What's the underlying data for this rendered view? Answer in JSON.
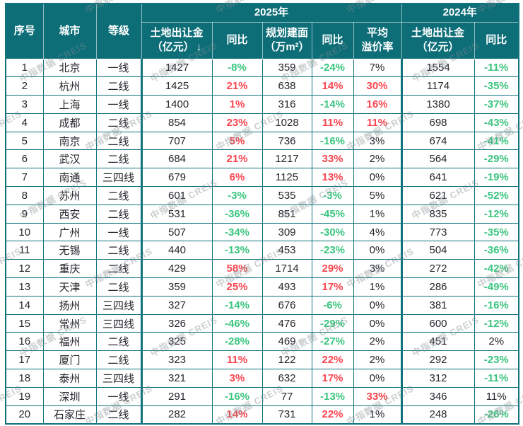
{
  "watermark": {
    "text": "中指数据 CREIS"
  },
  "colors": {
    "header_bg": "#0D6E78",
    "border": "#0F737D",
    "red": "#F9464F",
    "green": "#3BC57F",
    "text": "#26262C"
  },
  "header": {
    "fixed": [
      "序号",
      "城市",
      "等级"
    ],
    "groups": [
      "2025年",
      "2024年"
    ],
    "sub": [
      "土地出让金\n（亿元）",
      "同比",
      "规划建面\n（万m²）",
      "同比",
      "平均\n溢价率",
      "土地出让金\n（亿元）",
      "同比"
    ],
    "sort_icon": "↓"
  },
  "chart_data": {
    "type": "table",
    "title": "",
    "group_headers": [
      {
        "label": "2025年",
        "span": [
          "土地出让金（亿元）",
          "同比",
          "规划建面（万m²）",
          "同比",
          "平均溢价率"
        ]
      },
      {
        "label": "2024年",
        "span": [
          "土地出让金（亿元）",
          "同比"
        ]
      }
    ],
    "columns": [
      "序号",
      "城市",
      "等级",
      "土地出让金（亿元）",
      "同比",
      "规划建面（万m²）",
      "同比",
      "平均溢价率",
      "土地出让金（亿元）",
      "同比"
    ],
    "rows": [
      [
        {
          "v": "1"
        },
        {
          "v": "北京"
        },
        {
          "v": "一线"
        },
        {
          "v": "1427"
        },
        {
          "v": "-8%",
          "c": "green"
        },
        {
          "v": "359"
        },
        {
          "v": "-24%",
          "c": "green"
        },
        {
          "v": "7%"
        },
        {
          "v": "1554"
        },
        {
          "v": "-11%",
          "c": "green"
        }
      ],
      [
        {
          "v": "2"
        },
        {
          "v": "杭州"
        },
        {
          "v": "二线"
        },
        {
          "v": "1425"
        },
        {
          "v": "21%",
          "c": "red"
        },
        {
          "v": "638"
        },
        {
          "v": "14%",
          "c": "red"
        },
        {
          "v": "30%",
          "c": "red"
        },
        {
          "v": "1174"
        },
        {
          "v": "-35%",
          "c": "green"
        }
      ],
      [
        {
          "v": "3"
        },
        {
          "v": "上海"
        },
        {
          "v": "一线"
        },
        {
          "v": "1400"
        },
        {
          "v": "1%",
          "c": "red"
        },
        {
          "v": "316"
        },
        {
          "v": "-14%",
          "c": "green"
        },
        {
          "v": "16%",
          "c": "red"
        },
        {
          "v": "1380"
        },
        {
          "v": "-37%",
          "c": "green"
        }
      ],
      [
        {
          "v": "4"
        },
        {
          "v": "成都"
        },
        {
          "v": "二线"
        },
        {
          "v": "854"
        },
        {
          "v": "23%",
          "c": "red"
        },
        {
          "v": "1028"
        },
        {
          "v": "11%",
          "c": "red"
        },
        {
          "v": "11%",
          "c": "red"
        },
        {
          "v": "698"
        },
        {
          "v": "-43%",
          "c": "green"
        }
      ],
      [
        {
          "v": "5"
        },
        {
          "v": "南京"
        },
        {
          "v": "二线"
        },
        {
          "v": "707"
        },
        {
          "v": "5%",
          "c": "red"
        },
        {
          "v": "736"
        },
        {
          "v": "-16%",
          "c": "green"
        },
        {
          "v": "3%"
        },
        {
          "v": "674"
        },
        {
          "v": "-41%",
          "c": "green"
        }
      ],
      [
        {
          "v": "6"
        },
        {
          "v": "武汉"
        },
        {
          "v": "二线"
        },
        {
          "v": "684"
        },
        {
          "v": "21%",
          "c": "red"
        },
        {
          "v": "1217"
        },
        {
          "v": "33%",
          "c": "red"
        },
        {
          "v": "2%"
        },
        {
          "v": "564"
        },
        {
          "v": "-29%",
          "c": "green"
        }
      ],
      [
        {
          "v": "7"
        },
        {
          "v": "南通"
        },
        {
          "v": "三四线"
        },
        {
          "v": "679"
        },
        {
          "v": "6%",
          "c": "red"
        },
        {
          "v": "1125"
        },
        {
          "v": "13%",
          "c": "red"
        },
        {
          "v": "0%"
        },
        {
          "v": "641"
        },
        {
          "v": "-19%",
          "c": "green"
        }
      ],
      [
        {
          "v": "8"
        },
        {
          "v": "苏州"
        },
        {
          "v": "二线"
        },
        {
          "v": "601"
        },
        {
          "v": "-3%",
          "c": "green"
        },
        {
          "v": "535"
        },
        {
          "v": "-3%",
          "c": "green"
        },
        {
          "v": "5%"
        },
        {
          "v": "621"
        },
        {
          "v": "-52%",
          "c": "green"
        }
      ],
      [
        {
          "v": "9"
        },
        {
          "v": "西安"
        },
        {
          "v": "二线"
        },
        {
          "v": "531"
        },
        {
          "v": "-36%",
          "c": "green"
        },
        {
          "v": "851"
        },
        {
          "v": "-45%",
          "c": "green"
        },
        {
          "v": "1%"
        },
        {
          "v": "835"
        },
        {
          "v": "-12%",
          "c": "green"
        }
      ],
      [
        {
          "v": "10"
        },
        {
          "v": "广州"
        },
        {
          "v": "一线"
        },
        {
          "v": "507"
        },
        {
          "v": "-34%",
          "c": "green"
        },
        {
          "v": "309"
        },
        {
          "v": "-30%",
          "c": "green"
        },
        {
          "v": "4%"
        },
        {
          "v": "773"
        },
        {
          "v": "-35%",
          "c": "green"
        }
      ],
      [
        {
          "v": "11"
        },
        {
          "v": "无锡"
        },
        {
          "v": "二线"
        },
        {
          "v": "440"
        },
        {
          "v": "-13%",
          "c": "green"
        },
        {
          "v": "453"
        },
        {
          "v": "-23%",
          "c": "green"
        },
        {
          "v": "0%"
        },
        {
          "v": "504"
        },
        {
          "v": "-36%",
          "c": "green"
        }
      ],
      [
        {
          "v": "12"
        },
        {
          "v": "重庆"
        },
        {
          "v": "二线"
        },
        {
          "v": "429"
        },
        {
          "v": "58%",
          "c": "red"
        },
        {
          "v": "1714"
        },
        {
          "v": "29%",
          "c": "red"
        },
        {
          "v": "3%"
        },
        {
          "v": "272"
        },
        {
          "v": "-42%",
          "c": "green"
        }
      ],
      [
        {
          "v": "13"
        },
        {
          "v": "天津"
        },
        {
          "v": "二线"
        },
        {
          "v": "359"
        },
        {
          "v": "25%",
          "c": "red"
        },
        {
          "v": "493"
        },
        {
          "v": "17%",
          "c": "red"
        },
        {
          "v": "1%"
        },
        {
          "v": "286"
        },
        {
          "v": "-49%",
          "c": "green"
        }
      ],
      [
        {
          "v": "14"
        },
        {
          "v": "扬州"
        },
        {
          "v": "三四线"
        },
        {
          "v": "327"
        },
        {
          "v": "-14%",
          "c": "green"
        },
        {
          "v": "676"
        },
        {
          "v": "-6%",
          "c": "green"
        },
        {
          "v": "0%"
        },
        {
          "v": "381"
        },
        {
          "v": "-16%",
          "c": "green"
        }
      ],
      [
        {
          "v": "15"
        },
        {
          "v": "常州"
        },
        {
          "v": "三四线"
        },
        {
          "v": "326"
        },
        {
          "v": "-46%",
          "c": "green"
        },
        {
          "v": "476"
        },
        {
          "v": "-29%",
          "c": "green"
        },
        {
          "v": "0%"
        },
        {
          "v": "600"
        },
        {
          "v": "-12%",
          "c": "green"
        }
      ],
      [
        {
          "v": "16"
        },
        {
          "v": "福州"
        },
        {
          "v": "二线"
        },
        {
          "v": "325"
        },
        {
          "v": "-28%",
          "c": "green"
        },
        {
          "v": "469"
        },
        {
          "v": "-27%",
          "c": "green"
        },
        {
          "v": "2%"
        },
        {
          "v": "451"
        },
        {
          "v": "2%"
        }
      ],
      [
        {
          "v": "17"
        },
        {
          "v": "厦门"
        },
        {
          "v": "二线"
        },
        {
          "v": "323"
        },
        {
          "v": "11%",
          "c": "red"
        },
        {
          "v": "122"
        },
        {
          "v": "22%",
          "c": "red"
        },
        {
          "v": "2%"
        },
        {
          "v": "292"
        },
        {
          "v": "-23%",
          "c": "green"
        }
      ],
      [
        {
          "v": "18"
        },
        {
          "v": "泰州"
        },
        {
          "v": "三四线"
        },
        {
          "v": "321"
        },
        {
          "v": "3%",
          "c": "red"
        },
        {
          "v": "632"
        },
        {
          "v": "17%",
          "c": "red"
        },
        {
          "v": "0%"
        },
        {
          "v": "312"
        },
        {
          "v": "-11%",
          "c": "green"
        }
      ],
      [
        {
          "v": "19"
        },
        {
          "v": "深圳"
        },
        {
          "v": "一线"
        },
        {
          "v": "291"
        },
        {
          "v": "-16%",
          "c": "green"
        },
        {
          "v": "77"
        },
        {
          "v": "-13%",
          "c": "green"
        },
        {
          "v": "33%",
          "c": "red"
        },
        {
          "v": "346"
        },
        {
          "v": "11%"
        }
      ],
      [
        {
          "v": "20"
        },
        {
          "v": "石家庄"
        },
        {
          "v": "二线"
        },
        {
          "v": "282"
        },
        {
          "v": "14%",
          "c": "red"
        },
        {
          "v": "731"
        },
        {
          "v": "22%",
          "c": "red"
        },
        {
          "v": "1%"
        },
        {
          "v": "248"
        },
        {
          "v": "-26%",
          "c": "green"
        }
      ]
    ]
  }
}
